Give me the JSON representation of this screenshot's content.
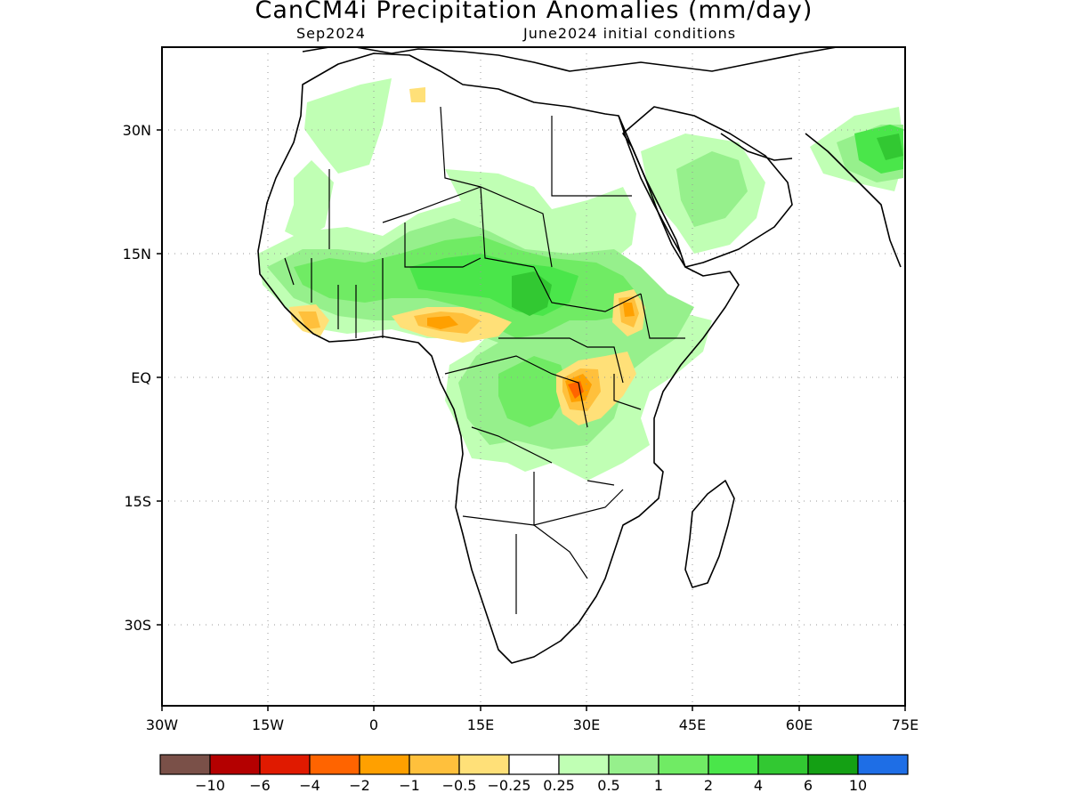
{
  "title": "CanCM4i Precipitation Anomalies (mm/day)",
  "subtitle_left": "Sep2024",
  "subtitle_right": "June2024 initial conditions",
  "lat_labels": [
    "30N",
    "15N",
    "EQ",
    "15S",
    "30S"
  ],
  "lon_labels": [
    "30W",
    "15W",
    "0",
    "15E",
    "30E",
    "45E",
    "60E",
    "75E"
  ],
  "map_extent": {
    "lon": [
      -30,
      75
    ],
    "lat": [
      -40,
      40
    ]
  },
  "colorbar": {
    "colors": [
      "#7a5048",
      "#b40000",
      "#e01a00",
      "#ff6400",
      "#ffa000",
      "#ffc03c",
      "#ffe078",
      "#ffffff",
      "#c0ffb4",
      "#96f08c",
      "#70eb64",
      "#4ae64a",
      "#32c832",
      "#14a014",
      "#1e6ee6"
    ],
    "labels": [
      "−10",
      "−6",
      "−4",
      "−2",
      "−1",
      "−0.5",
      "−0.25",
      "0.25",
      "0.5",
      "1",
      "2",
      "4",
      "6",
      "10"
    ]
  },
  "colors": {
    "land_outline": "#000000",
    "ocean": "#ffffff",
    "grid": "#999999"
  }
}
